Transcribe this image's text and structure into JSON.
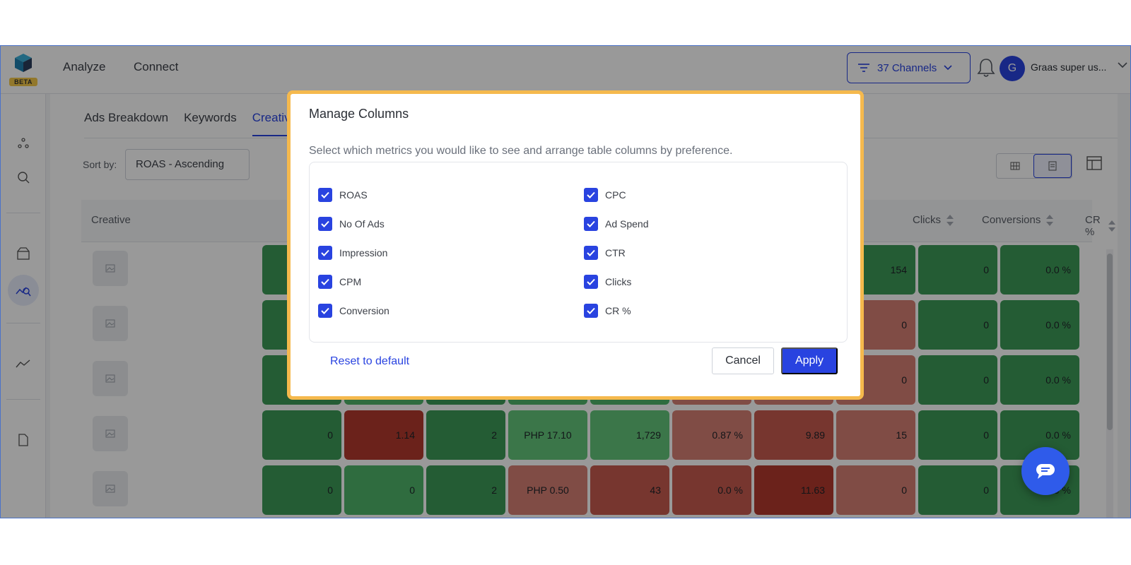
{
  "app": {
    "logo_badge": "BETA",
    "nav": [
      "Analyze",
      "Connect"
    ],
    "channels_label": "37 Channels",
    "user_initial": "G",
    "user_name": "Graas super us...",
    "accent": "#2943e0"
  },
  "page": {
    "tabs": [
      "Ads Breakdown",
      "Keywords",
      "Creatives"
    ],
    "active_tab": "Creatives",
    "sort_label": "Sort by:",
    "sort_value": "ROAS - Ascending"
  },
  "table": {
    "headers": {
      "creative": "Creative",
      "clicks": "Clicks",
      "conversions": "Conversions",
      "cr": "CR %"
    },
    "rows": [
      {
        "vals": [
          "",
          "",
          "",
          "",
          "",
          "",
          "",
          "154",
          "0",
          "0.0 %"
        ]
      },
      {
        "vals": [
          "",
          "",
          "",
          "",
          "",
          "",
          "",
          "0",
          "0",
          "0.0 %"
        ]
      },
      {
        "vals": [
          "",
          "",
          "",
          "",
          "",
          "",
          "",
          "0",
          "0",
          "0.0 %"
        ]
      },
      {
        "vals": [
          "0",
          "1.14",
          "2",
          "PHP 17.10",
          "1,729",
          "0.87 %",
          "9.89",
          "15",
          "0",
          "0.0 %"
        ]
      },
      {
        "vals": [
          "0",
          "0",
          "2",
          "PHP 0.50",
          "43",
          "0.0 %",
          "11.63",
          "0",
          "0",
          "0.0 %"
        ]
      }
    ],
    "colors": {
      "green_dark": "#3d9a58",
      "green_mid": "#4fb56a",
      "green_light": "#63c57b",
      "red_light": "#d67f74",
      "red_mid": "#c65a4f",
      "red_dark": "#b2392d"
    }
  },
  "modal": {
    "title": "Manage Columns",
    "subtitle": "Select which metrics you would like to see and arrange table columns by preference.",
    "left_options": [
      "ROAS",
      "No Of Ads",
      "Impression",
      "CPM",
      "Conversion"
    ],
    "right_options": [
      "CPC",
      "Ad Spend",
      "CTR",
      "Clicks",
      "CR %"
    ],
    "reset_label": "Reset to default",
    "cancel_label": "Cancel",
    "apply_label": "Apply",
    "highlight_color": "#f5b94d"
  }
}
